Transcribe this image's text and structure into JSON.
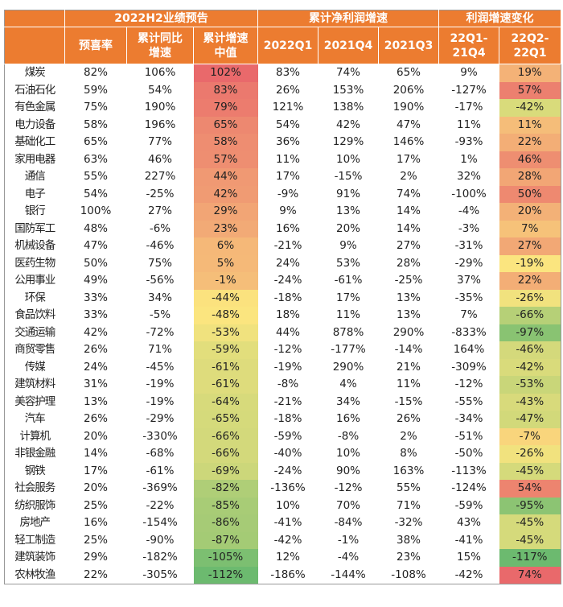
{
  "header": {
    "group1": "2022H2业绩预告",
    "group2": "累计净利润增速",
    "group3": "利润增速变化",
    "columns": [
      "预喜率",
      "累计同比\n增速",
      "累计增速\n中值",
      "2022Q1",
      "2021Q4",
      "2021Q3",
      "22Q1-\n21Q4",
      "22Q2-\n22Q1"
    ]
  },
  "colors": {
    "header_bg": "#ec7c30",
    "scale_low": "#6cba6f",
    "scale_mid": "#fbe57f",
    "scale_high": "#e9696b"
  },
  "rows": [
    [
      "煤炭",
      "82%",
      "106%",
      "102%",
      "83%",
      "74%",
      "65%",
      "9%",
      "19%"
    ],
    [
      "石油石化",
      "59%",
      "54%",
      "83%",
      "26%",
      "153%",
      "206%",
      "-127%",
      "57%"
    ],
    [
      "有色金属",
      "75%",
      "190%",
      "79%",
      "121%",
      "138%",
      "190%",
      "-17%",
      "-42%"
    ],
    [
      "电力设备",
      "58%",
      "196%",
      "65%",
      "54%",
      "42%",
      "47%",
      "11%",
      "11%"
    ],
    [
      "基础化工",
      "65%",
      "77%",
      "58%",
      "36%",
      "129%",
      "146%",
      "-93%",
      "22%"
    ],
    [
      "家用电器",
      "63%",
      "46%",
      "57%",
      "11%",
      "10%",
      "17%",
      "1%",
      "46%"
    ],
    [
      "通信",
      "55%",
      "227%",
      "44%",
      "17%",
      "-15%",
      "2%",
      "32%",
      "28%"
    ],
    [
      "电子",
      "54%",
      "-25%",
      "42%",
      "-9%",
      "91%",
      "74%",
      "-100%",
      "50%"
    ],
    [
      "银行",
      "100%",
      "27%",
      "29%",
      "9%",
      "13%",
      "14%",
      "-4%",
      "20%"
    ],
    [
      "国防军工",
      "48%",
      "-6%",
      "23%",
      "16%",
      "20%",
      "14%",
      "-3%",
      "7%"
    ],
    [
      "机械设备",
      "47%",
      "-46%",
      "6%",
      "-21%",
      "9%",
      "27%",
      "-31%",
      "27%"
    ],
    [
      "医药生物",
      "50%",
      "75%",
      "5%",
      "24%",
      "53%",
      "28%",
      "-29%",
      "-19%"
    ],
    [
      "公用事业",
      "49%",
      "-56%",
      "-1%",
      "-24%",
      "-61%",
      "-25%",
      "37%",
      "22%"
    ],
    [
      "环保",
      "33%",
      "34%",
      "-44%",
      "-18%",
      "17%",
      "13%",
      "-35%",
      "-26%"
    ],
    [
      "食品饮料",
      "33%",
      "-5%",
      "-48%",
      "18%",
      "11%",
      "13%",
      "7%",
      "-66%"
    ],
    [
      "交通运输",
      "42%",
      "-72%",
      "-53%",
      "44%",
      "878%",
      "290%",
      "-833%",
      "-97%"
    ],
    [
      "商贸零售",
      "26%",
      "71%",
      "-59%",
      "-12%",
      "-177%",
      "-14%",
      "164%",
      "-46%"
    ],
    [
      "传媒",
      "24%",
      "-45%",
      "-61%",
      "-19%",
      "290%",
      "21%",
      "-309%",
      "-42%"
    ],
    [
      "建筑材料",
      "31%",
      "-19%",
      "-61%",
      "-8%",
      "4%",
      "11%",
      "-12%",
      "-53%"
    ],
    [
      "美容护理",
      "13%",
      "-19%",
      "-64%",
      "-21%",
      "34%",
      "-15%",
      "-55%",
      "-43%"
    ],
    [
      "汽车",
      "26%",
      "-29%",
      "-65%",
      "-18%",
      "16%",
      "26%",
      "-34%",
      "-47%"
    ],
    [
      "计算机",
      "20%",
      "-330%",
      "-66%",
      "-59%",
      "-8%",
      "2%",
      "-51%",
      "-7%"
    ],
    [
      "非银金融",
      "14%",
      "-68%",
      "-66%",
      "-40%",
      "10%",
      "8%",
      "-50%",
      "-26%"
    ],
    [
      "钢铁",
      "17%",
      "-61%",
      "-69%",
      "-24%",
      "90%",
      "163%",
      "-113%",
      "-45%"
    ],
    [
      "社会服务",
      "20%",
      "-369%",
      "-82%",
      "-136%",
      "-12%",
      "55%",
      "-124%",
      "54%"
    ],
    [
      "纺织服饰",
      "25%",
      "-22%",
      "-85%",
      "10%",
      "70%",
      "71%",
      "-59%",
      "-95%"
    ],
    [
      "房地产",
      "16%",
      "-154%",
      "-86%",
      "-41%",
      "-84%",
      "-32%",
      "43%",
      "-45%"
    ],
    [
      "轻工制造",
      "25%",
      "-90%",
      "-87%",
      "-42%",
      "-1%",
      "38%",
      "-41%",
      "-45%"
    ],
    [
      "建筑装饰",
      "29%",
      "-182%",
      "-105%",
      "12%",
      "-4%",
      "23%",
      "15%",
      "-117%"
    ],
    [
      "农林牧渔",
      "22%",
      "-305%",
      "-112%",
      "-186%",
      "-144%",
      "-108%",
      "-42%",
      "74%"
    ]
  ]
}
